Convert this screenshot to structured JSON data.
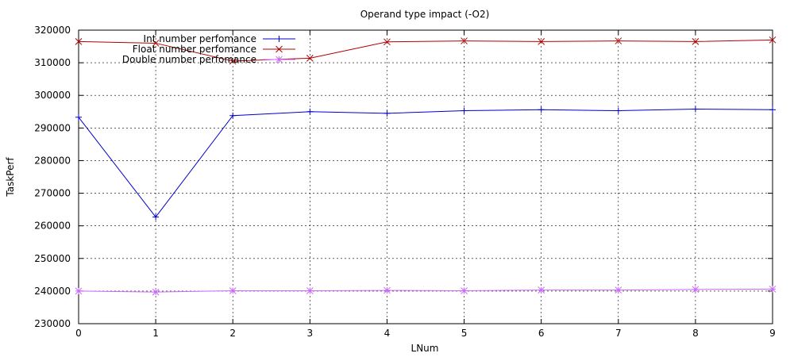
{
  "chart_data": {
    "type": "line",
    "title": "Operand type impact (-O2)",
    "xlabel": "LNum",
    "ylabel": "TaskPerf",
    "xlim": [
      0,
      9
    ],
    "ylim": [
      230000,
      320000
    ],
    "x_ticks": [
      0,
      1,
      2,
      3,
      4,
      5,
      6,
      7,
      8,
      9
    ],
    "y_ticks": [
      230000,
      240000,
      250000,
      260000,
      270000,
      280000,
      290000,
      300000,
      310000,
      320000
    ],
    "grid": true,
    "legend_position": "top-left",
    "x": [
      0,
      1,
      2,
      3,
      4,
      5,
      6,
      7,
      8,
      9
    ],
    "series": [
      {
        "name": "Int number perfomance",
        "color": "#0000cc",
        "marker": "plus",
        "values": [
          293300,
          262700,
          293800,
          295000,
          294500,
          295300,
          295600,
          295300,
          295800,
          295600
        ]
      },
      {
        "name": "Float number perfomance",
        "color": "#b30000",
        "marker": "cross",
        "values": [
          316500,
          316000,
          310500,
          311400,
          316400,
          316700,
          316500,
          316700,
          316500,
          317000
        ]
      },
      {
        "name": "Double number perfomance",
        "color": "#cc66ff",
        "marker": "star",
        "values": [
          240000,
          239700,
          240100,
          240100,
          240200,
          240100,
          240300,
          240300,
          240500,
          240600
        ]
      }
    ]
  }
}
